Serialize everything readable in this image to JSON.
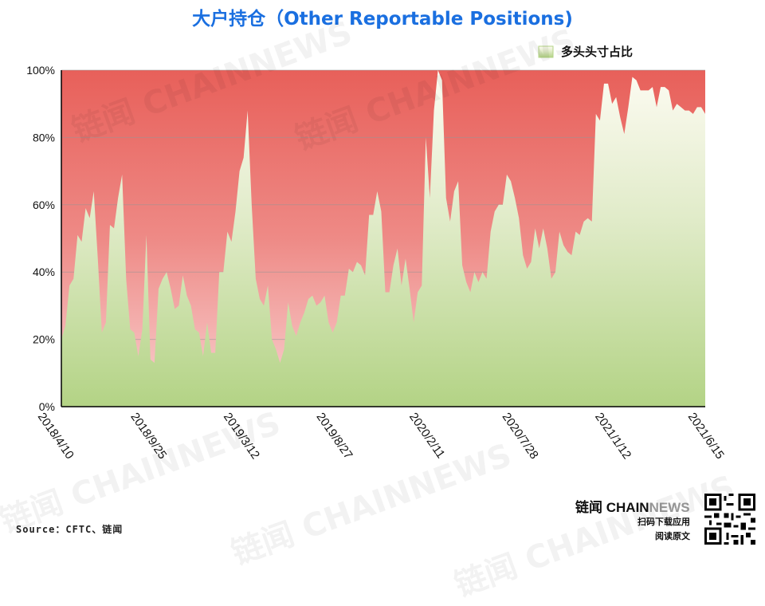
{
  "header": {
    "title": "大户持仓（Other Reportable Positions)"
  },
  "footer": {
    "source": "Source：CFTC、链闻",
    "brand_cn": "链闻",
    "brand_chain": "CHAIN",
    "brand_news": "NEWS",
    "scan_line1": "扫码下载应用",
    "scan_line2": "阅读原文"
  },
  "watermark_text": "链闻 CHAINNEWS",
  "colors": {
    "title": "#1a6fe0",
    "long_area_top": "#fdfbf2",
    "long_area_bottom": "#b3d385",
    "short_area_top": "#e8605a",
    "short_area_bottom": "#f9d3d3"
  },
  "chart_data": {
    "type": "area",
    "title": "大户持仓（Other Reportable Positions)",
    "ylim": [
      0,
      100
    ],
    "yticks": [
      "0%",
      "20%",
      "40%",
      "60%",
      "80%",
      "100%"
    ],
    "xticks": [
      "2018/4/10",
      "2018/9/25",
      "2019/3/12",
      "2019/8/27",
      "2020/2/11",
      "2020/7/28",
      "2021/1/12",
      "2021/6/15"
    ],
    "grid": true,
    "legend": {
      "position": "top-right",
      "entries": [
        "多头头寸占比"
      ]
    },
    "series": [
      {
        "name": "多头头寸占比",
        "values": [
          20,
          24,
          36,
          38,
          51,
          49,
          59,
          56,
          64,
          44,
          22,
          25,
          54,
          53,
          62,
          69,
          38,
          23,
          22,
          15,
          23,
          51,
          14,
          13,
          35,
          38,
          40,
          35,
          29,
          30,
          39,
          33,
          30,
          23,
          22,
          15,
          25,
          16,
          16,
          40,
          40,
          52,
          49,
          58,
          70,
          74,
          88,
          60,
          38,
          32,
          30,
          36,
          20,
          17,
          13,
          17,
          31,
          24,
          21,
          25,
          28,
          32,
          33,
          30,
          31,
          33,
          25,
          22,
          25,
          33,
          33,
          41,
          40,
          43,
          42,
          39,
          57,
          57,
          64,
          58,
          34,
          34,
          42,
          47,
          36,
          44,
          35,
          25,
          34,
          36,
          80,
          62,
          88,
          100,
          97,
          62,
          55,
          64,
          67,
          42,
          37,
          34,
          40,
          37,
          40,
          38,
          52,
          58,
          60,
          60,
          69,
          67,
          62,
          56,
          45,
          41,
          43,
          53,
          47,
          53,
          47,
          38,
          40,
          52,
          48,
          46,
          45,
          52,
          51,
          55,
          56,
          55,
          87,
          85,
          96,
          96,
          90,
          92,
          86,
          81,
          89,
          98,
          97,
          94,
          94,
          94,
          95,
          89,
          95,
          95,
          94,
          88,
          90,
          89,
          88,
          88,
          87,
          89,
          89,
          87
        ]
      }
    ]
  }
}
